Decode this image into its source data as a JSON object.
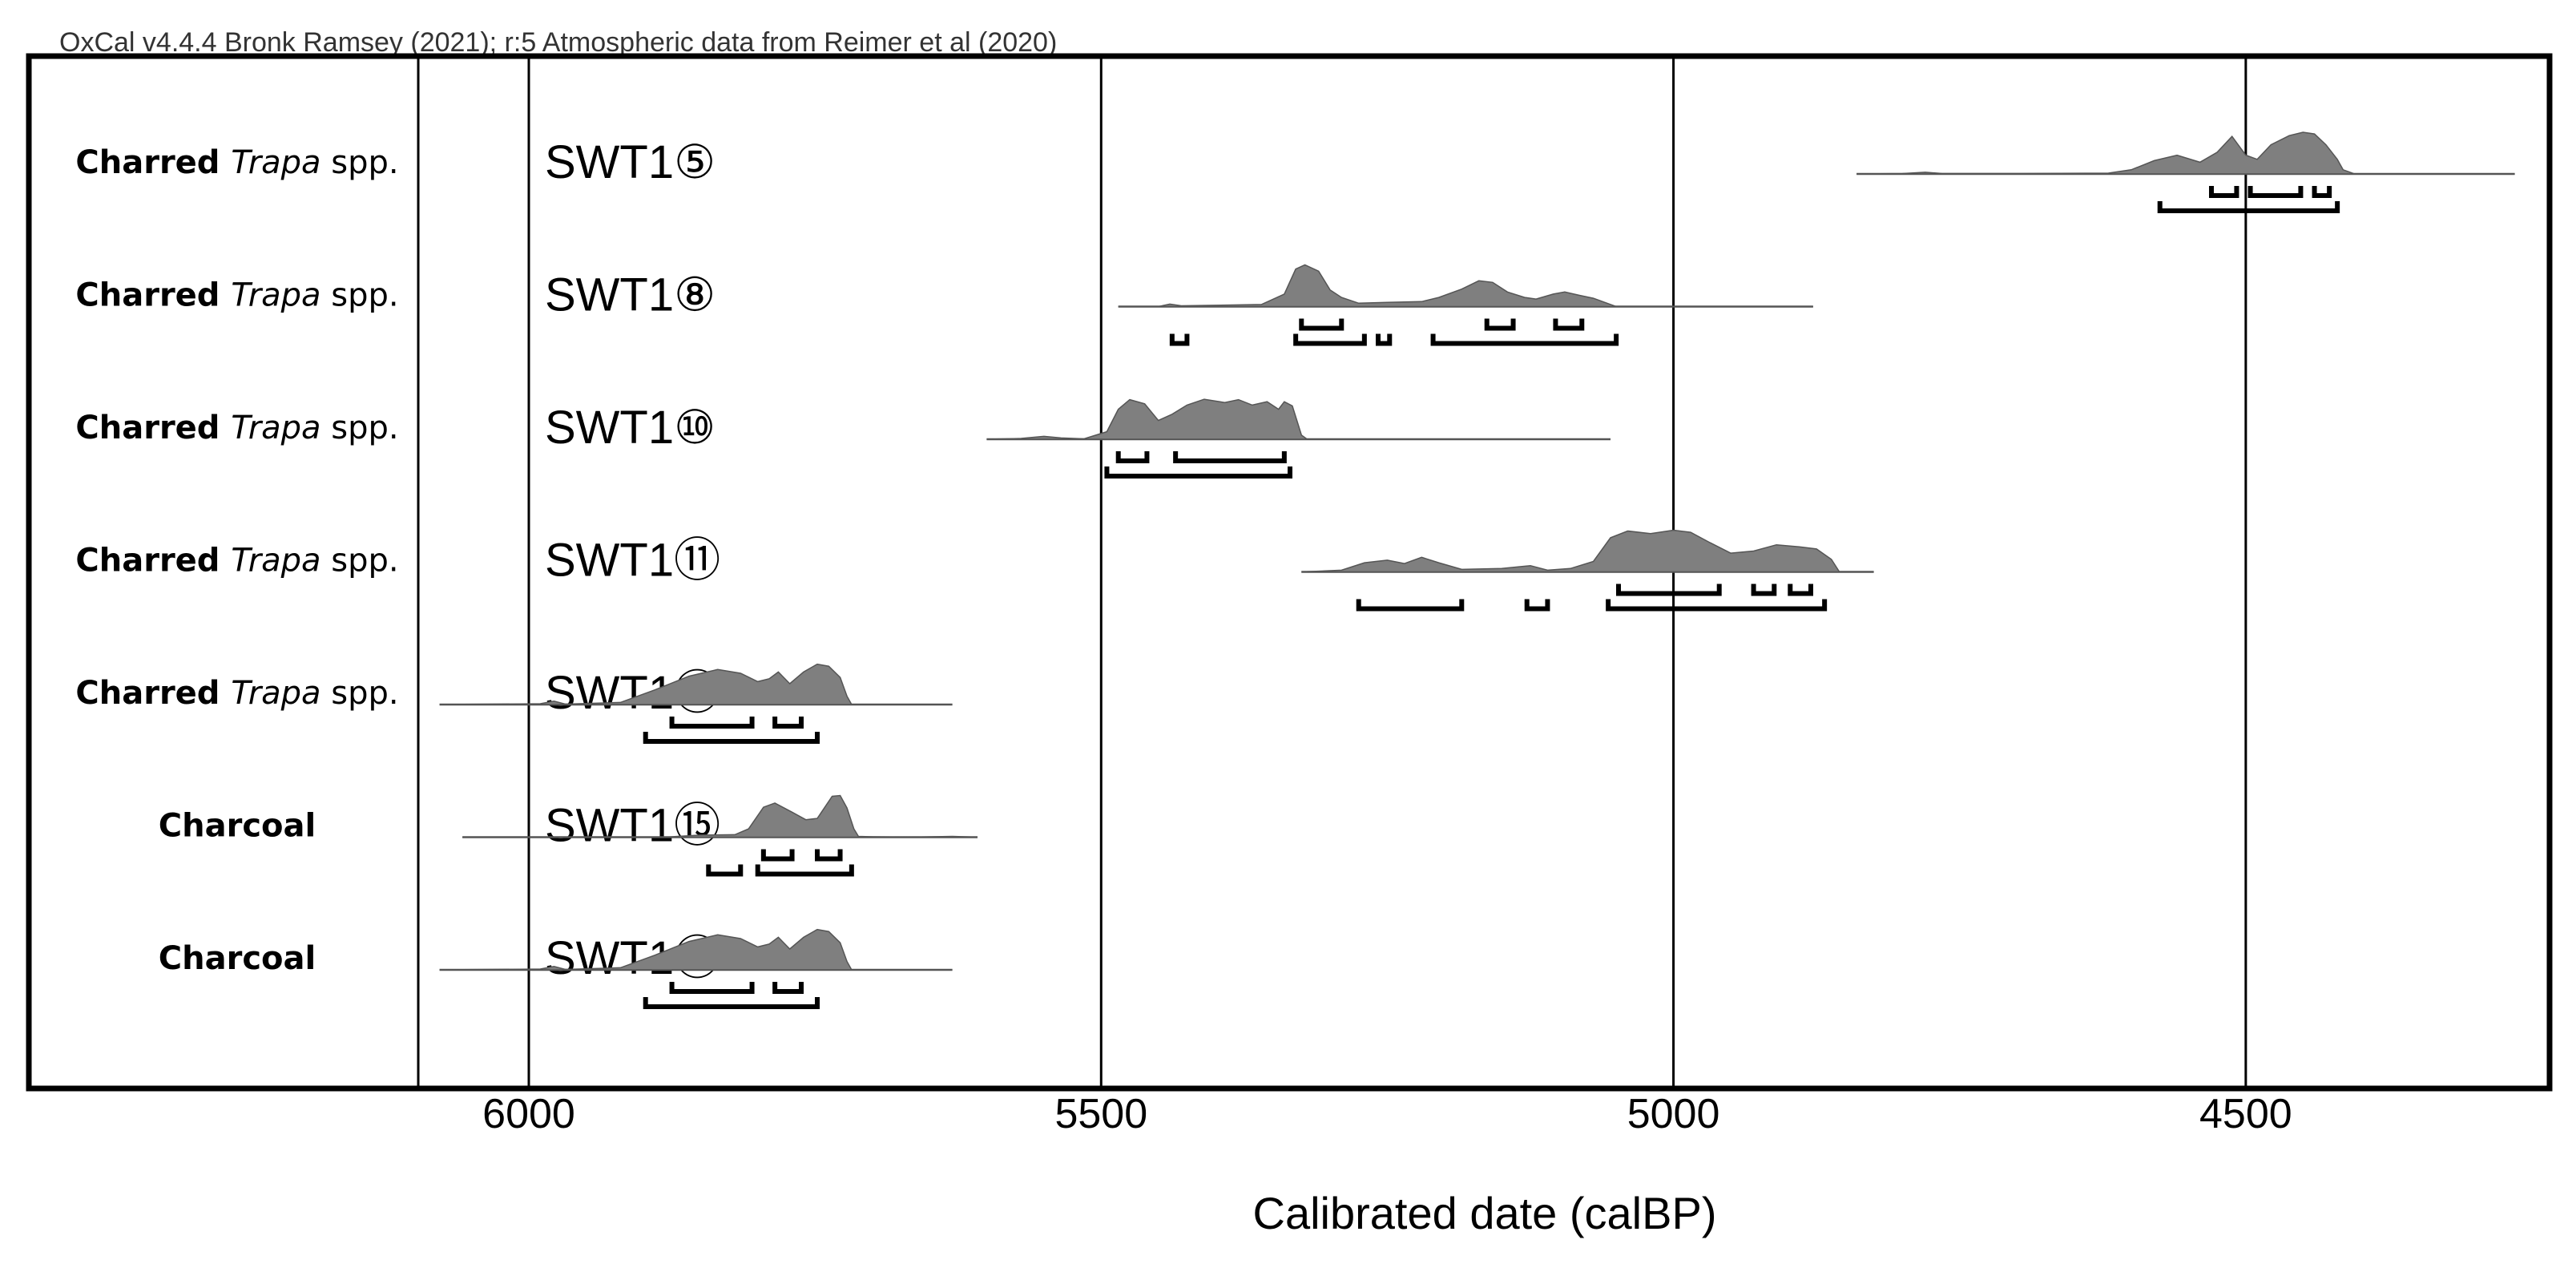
{
  "chart_data": {
    "type": "area",
    "header": "OxCal v4.4.4 Bronk Ramsey (2021); r:5 Atmospheric data from Reimer et al (2020)",
    "xlabel": "Calibrated date (calBP)",
    "xlim": [
      6434,
      4236
    ],
    "x_axis_reversed": true,
    "xticks": [
      "6000",
      "5500",
      "5000",
      "4500"
    ],
    "xtick_values": [
      6000,
      5500,
      5000,
      4500
    ],
    "grid": "vertical",
    "colors": {
      "distribution_fill": "#7f7f7f",
      "distribution_stroke": "#555555",
      "frame": "#000000"
    },
    "rows": [
      {
        "material": {
          "pre": "Charred",
          "italic": "Trapa",
          "post": "spp."
        },
        "sample": "SWT1⑤",
        "range": [
          4840,
          4265
        ],
        "distribution": [
          [
            4840,
            0
          ],
          [
            4800,
            0.01
          ],
          [
            4780,
            0.04
          ],
          [
            4765,
            0.01
          ],
          [
            4700,
            0.01
          ],
          [
            4620,
            0.02
          ],
          [
            4600,
            0.1
          ],
          [
            4580,
            0.32
          ],
          [
            4560,
            0.45
          ],
          [
            4540,
            0.28
          ],
          [
            4525,
            0.52
          ],
          [
            4512,
            0.9
          ],
          [
            4500,
            0.45
          ],
          [
            4490,
            0.35
          ],
          [
            4478,
            0.7
          ],
          [
            4462,
            0.92
          ],
          [
            4450,
            1.0
          ],
          [
            4440,
            0.96
          ],
          [
            4430,
            0.7
          ],
          [
            4420,
            0.35
          ],
          [
            4415,
            0.1
          ],
          [
            4405,
            0
          ],
          [
            4265,
            0
          ]
        ],
        "intervals_68": [
          [
            4530,
            4508
          ],
          [
            4496,
            4452
          ],
          [
            4440,
            4427
          ]
        ],
        "intervals_95": [
          [
            4575,
            4420
          ]
        ]
      },
      {
        "material": {
          "pre": "Charred",
          "italic": "Trapa",
          "post": "spp."
        },
        "sample": "SWT1⑧",
        "range": [
          5485,
          4878
        ],
        "distribution": [
          [
            5485,
            0
          ],
          [
            5450,
            0
          ],
          [
            5440,
            0.06
          ],
          [
            5430,
            0.02
          ],
          [
            5360,
            0.05
          ],
          [
            5340,
            0.3
          ],
          [
            5330,
            0.9
          ],
          [
            5322,
            1.0
          ],
          [
            5310,
            0.85
          ],
          [
            5300,
            0.4
          ],
          [
            5290,
            0.22
          ],
          [
            5275,
            0.08
          ],
          [
            5250,
            0.1
          ],
          [
            5220,
            0.12
          ],
          [
            5205,
            0.22
          ],
          [
            5185,
            0.42
          ],
          [
            5170,
            0.62
          ],
          [
            5158,
            0.58
          ],
          [
            5145,
            0.35
          ],
          [
            5130,
            0.22
          ],
          [
            5120,
            0.18
          ],
          [
            5105,
            0.3
          ],
          [
            5095,
            0.35
          ],
          [
            5082,
            0.27
          ],
          [
            5070,
            0.2
          ],
          [
            5058,
            0.08
          ],
          [
            5050,
            0
          ],
          [
            4878,
            0
          ]
        ],
        "intervals_68": [
          [
            5325,
            5290
          ],
          [
            5163,
            5140
          ],
          [
            5103,
            5080
          ]
        ],
        "intervals_95": [
          [
            5438,
            5425
          ],
          [
            5330,
            5270
          ],
          [
            5258,
            5248
          ],
          [
            5210,
            5050
          ]
        ]
      },
      {
        "material": {
          "pre": "Charred",
          "italic": "Trapa",
          "post": "spp."
        },
        "sample": "SWT1⑩",
        "range": [
          5600,
          5055
        ],
        "distribution": [
          [
            5600,
            0
          ],
          [
            5570,
            0.02
          ],
          [
            5550,
            0.07
          ],
          [
            5535,
            0.03
          ],
          [
            5515,
            0.01
          ],
          [
            5495,
            0.18
          ],
          [
            5485,
            0.72
          ],
          [
            5475,
            0.95
          ],
          [
            5462,
            0.85
          ],
          [
            5450,
            0.45
          ],
          [
            5438,
            0.6
          ],
          [
            5425,
            0.82
          ],
          [
            5410,
            0.96
          ],
          [
            5392,
            0.88
          ],
          [
            5380,
            0.95
          ],
          [
            5368,
            0.82
          ],
          [
            5355,
            0.9
          ],
          [
            5345,
            0.72
          ],
          [
            5340,
            0.9
          ],
          [
            5333,
            0.8
          ],
          [
            5325,
            0.1
          ],
          [
            5320,
            0
          ],
          [
            5055,
            0
          ]
        ],
        "intervals_68": [
          [
            5485,
            5460
          ],
          [
            5435,
            5340
          ]
        ],
        "intervals_95": [
          [
            5495,
            5335
          ]
        ]
      },
      {
        "material": {
          "pre": "Charred",
          "italic": "Trapa",
          "post": "spp."
        },
        "sample": "SWT1⑪",
        "range": [
          5325,
          4825
        ],
        "distribution": [
          [
            5325,
            0
          ],
          [
            5290,
            0.04
          ],
          [
            5270,
            0.22
          ],
          [
            5250,
            0.28
          ],
          [
            5235,
            0.2
          ],
          [
            5220,
            0.35
          ],
          [
            5205,
            0.22
          ],
          [
            5185,
            0.06
          ],
          [
            5150,
            0.08
          ],
          [
            5125,
            0.15
          ],
          [
            5110,
            0.04
          ],
          [
            5090,
            0.08
          ],
          [
            5070,
            0.25
          ],
          [
            5055,
            0.82
          ],
          [
            5040,
            0.98
          ],
          [
            5020,
            0.92
          ],
          [
            5000,
            1.0
          ],
          [
            4985,
            0.95
          ],
          [
            4968,
            0.7
          ],
          [
            4950,
            0.45
          ],
          [
            4930,
            0.5
          ],
          [
            4910,
            0.65
          ],
          [
            4890,
            0.6
          ],
          [
            4875,
            0.55
          ],
          [
            4862,
            0.3
          ],
          [
            4855,
            0
          ],
          [
            4825,
            0
          ]
        ],
        "intervals_68": [
          [
            5048,
            4960
          ],
          [
            4930,
            4912
          ],
          [
            4898,
            4880
          ]
        ],
        "intervals_95": [
          [
            5275,
            5185
          ],
          [
            5128,
            5110
          ],
          [
            5057,
            4868
          ]
        ]
      },
      {
        "material": {
          "pre": "Charred",
          "italic": "Trapa",
          "post": "spp."
        },
        "sample": "SWT1⑭",
        "range": [
          6078,
          5630
        ],
        "distribution": [
          [
            6078,
            0
          ],
          [
            5990,
            0.02
          ],
          [
            5978,
            0.08
          ],
          [
            5968,
            0.01
          ],
          [
            5920,
            0.05
          ],
          [
            5890,
            0.35
          ],
          [
            5860,
            0.68
          ],
          [
            5835,
            0.84
          ],
          [
            5815,
            0.75
          ],
          [
            5800,
            0.55
          ],
          [
            5790,
            0.62
          ],
          [
            5782,
            0.78
          ],
          [
            5772,
            0.5
          ],
          [
            5760,
            0.78
          ],
          [
            5748,
            0.97
          ],
          [
            5738,
            0.92
          ],
          [
            5728,
            0.65
          ],
          [
            5722,
            0.2
          ],
          [
            5718,
            0
          ],
          [
            5630,
            0
          ]
        ],
        "intervals_68": [
          [
            5875,
            5805
          ],
          [
            5785,
            5762
          ]
        ],
        "intervals_95": [
          [
            5898,
            5748
          ]
        ]
      },
      {
        "material": {
          "pre": "",
          "italic": "",
          "post": "Charcoal"
        },
        "sample": "SWT1⑮",
        "range": [
          6058,
          5608
        ],
        "distribution": [
          [
            6058,
            0
          ],
          [
            5880,
            0
          ],
          [
            5870,
            0.02
          ],
          [
            5850,
            0.05
          ],
          [
            5820,
            0.06
          ],
          [
            5808,
            0.2
          ],
          [
            5795,
            0.72
          ],
          [
            5785,
            0.82
          ],
          [
            5770,
            0.6
          ],
          [
            5758,
            0.42
          ],
          [
            5748,
            0.45
          ],
          [
            5735,
            0.98
          ],
          [
            5728,
            1.0
          ],
          [
            5722,
            0.7
          ],
          [
            5716,
            0.2
          ],
          [
            5712,
            0.02
          ],
          [
            5700,
            0.01
          ],
          [
            5665,
            0
          ],
          [
            5630,
            0.02
          ],
          [
            5608,
            0
          ]
        ],
        "intervals_68": [
          [
            5795,
            5770
          ],
          [
            5748,
            5728
          ]
        ],
        "intervals_95": [
          [
            5843,
            5815
          ],
          [
            5800,
            5718
          ]
        ]
      },
      {
        "material": {
          "pre": "",
          "italic": "",
          "post": "Charcoal"
        },
        "sample": "SWT1⑱",
        "range": [
          6078,
          5630
        ],
        "distribution": [
          [
            6078,
            0
          ],
          [
            5990,
            0.02
          ],
          [
            5978,
            0.08
          ],
          [
            5968,
            0.01
          ],
          [
            5920,
            0.05
          ],
          [
            5890,
            0.35
          ],
          [
            5860,
            0.68
          ],
          [
            5835,
            0.84
          ],
          [
            5815,
            0.75
          ],
          [
            5800,
            0.55
          ],
          [
            5790,
            0.62
          ],
          [
            5782,
            0.78
          ],
          [
            5772,
            0.5
          ],
          [
            5760,
            0.78
          ],
          [
            5748,
            0.97
          ],
          [
            5738,
            0.92
          ],
          [
            5728,
            0.65
          ],
          [
            5722,
            0.2
          ],
          [
            5718,
            0
          ],
          [
            5630,
            0
          ]
        ],
        "intervals_68": [
          [
            5875,
            5805
          ],
          [
            5785,
            5762
          ]
        ],
        "intervals_95": [
          [
            5898,
            5748
          ]
        ]
      }
    ]
  }
}
